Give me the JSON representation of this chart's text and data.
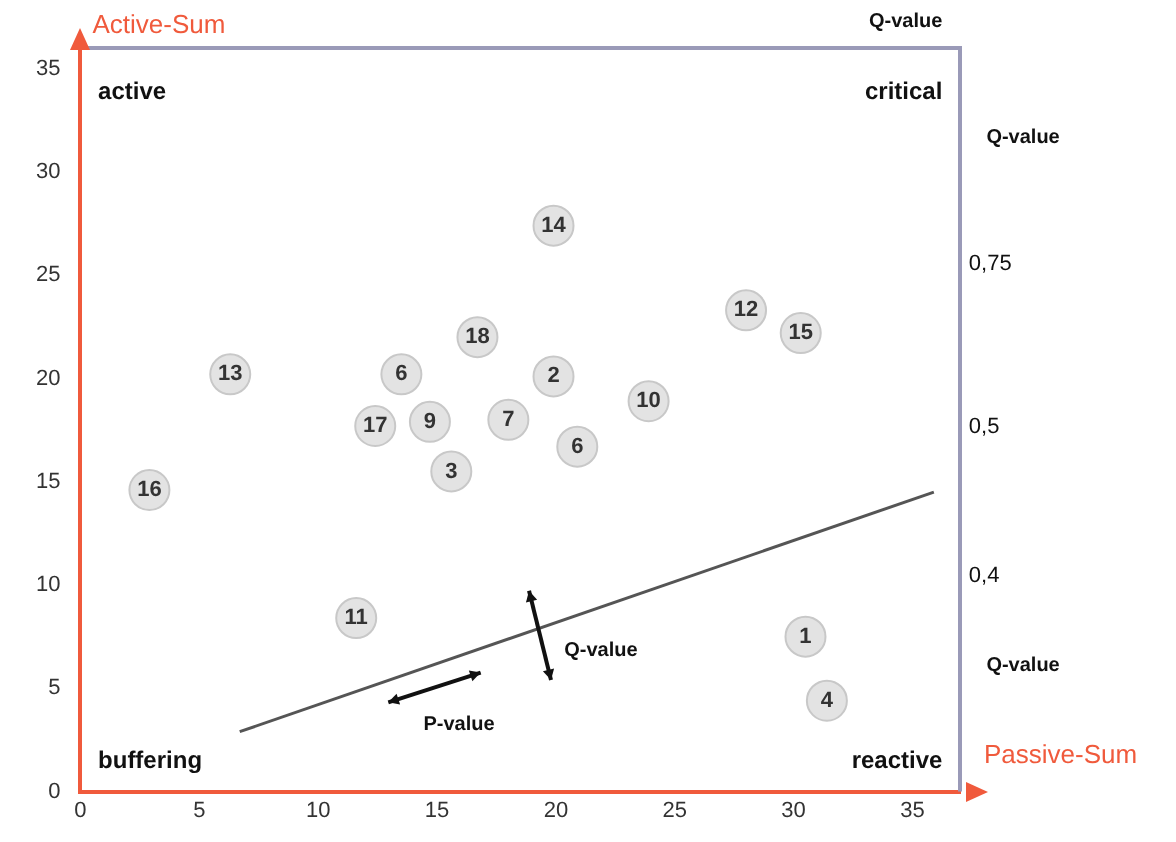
{
  "chart_data": {
    "type": "scatter",
    "xlabel": "Passive-Sum",
    "ylabel": "Active-Sum",
    "xlim": [
      0,
      37
    ],
    "ylim": [
      0,
      36
    ],
    "xticks": [
      0,
      5,
      10,
      15,
      20,
      25,
      30,
      35
    ],
    "yticks": [
      0,
      5,
      10,
      15,
      20,
      25,
      30,
      35
    ],
    "grid": false,
    "legend": false,
    "marker": "circle",
    "series": [
      {
        "color": "#e3e3e3",
        "x": [
          30.5,
          19.9,
          15.6,
          31.4,
          13.5,
          18.0,
          20.9,
          14.7,
          23.9,
          11.6,
          28.0,
          6.3,
          19.9,
          30.3,
          2.9,
          12.4,
          16.7
        ],
        "values": [
          7.5,
          20.1,
          15.5,
          4.4,
          20.2,
          18.0,
          16.7,
          17.9,
          18.9,
          8.4,
          23.3,
          20.2,
          27.4,
          22.2,
          14.6,
          17.7,
          22.0
        ]
      },
      {
        "type": "line",
        "color": "#555555",
        "x": [
          6.7,
          35.9
        ],
        "values": [
          2.9,
          14.5
        ],
        "line_style": "solid",
        "marker": "none"
      }
    ],
    "annotations": [
      {
        "text": "1",
        "x": 30.5,
        "y": 7.5
      },
      {
        "text": "2",
        "x": 19.9,
        "y": 20.1
      },
      {
        "text": "3",
        "x": 15.6,
        "y": 15.5
      },
      {
        "text": "4",
        "x": 31.4,
        "y": 4.4
      },
      {
        "text": "6",
        "x": 13.5,
        "y": 20.2
      },
      {
        "text": "7",
        "x": 18.0,
        "y": 18.0
      },
      {
        "text": "6",
        "x": 20.9,
        "y": 16.7
      },
      {
        "text": "9",
        "x": 14.7,
        "y": 17.9
      },
      {
        "text": "10",
        "x": 23.9,
        "y": 18.9
      },
      {
        "text": "11",
        "x": 11.6,
        "y": 8.4
      },
      {
        "text": "12",
        "x": 28.0,
        "y": 23.3
      },
      {
        "text": "13",
        "x": 6.3,
        "y": 20.2
      },
      {
        "text": "14",
        "x": 19.9,
        "y": 27.4
      },
      {
        "text": "15",
        "x": 30.3,
        "y": 22.2
      },
      {
        "text": "16",
        "x": 2.9,
        "y": 14.6
      },
      {
        "text": "17",
        "x": 12.4,
        "y": 17.7
      },
      {
        "text": "18",
        "x": 16.7,
        "y": 22.0
      },
      "active",
      "critical",
      "buffering",
      "reactive",
      "Q-value",
      "Q-value",
      "Q-value",
      "0,75",
      "0,5",
      "0,4",
      "Q-value",
      "P-value"
    ]
  }
}
